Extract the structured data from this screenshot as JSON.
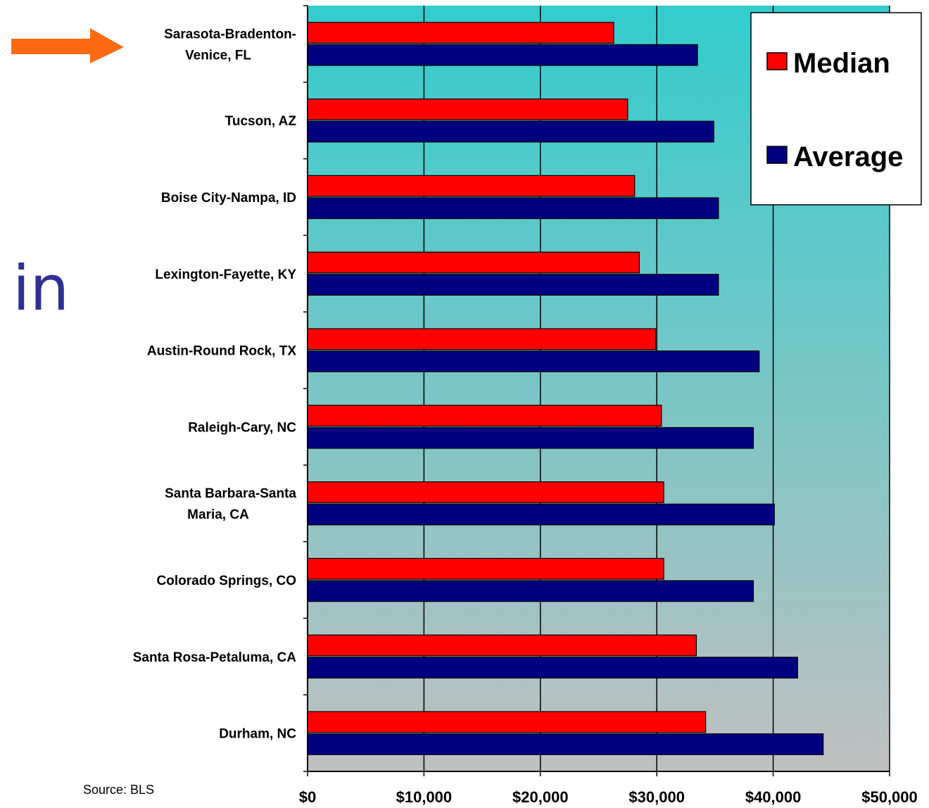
{
  "side_text": "in",
  "source": "Source: BLS",
  "colors": {
    "median": "#ff0000",
    "average": "#000080",
    "plot_top": "#33cccc",
    "plot_bottom": "#c0c0c0",
    "arrow": "#ff6a13",
    "side_text": "#2e3192"
  },
  "arrow_icon": "right-arrow-icon",
  "chart_data": {
    "type": "bar",
    "orientation": "horizontal",
    "categories": [
      "Sarasota-Bradenton-Venice, FL",
      "Tucson, AZ",
      "Boise City-Nampa, ID",
      "Lexington-Fayette, KY",
      "Austin-Round Rock, TX",
      "Raleigh-Cary, NC",
      "Santa Barbara-Santa Maria, CA",
      "Colorado Springs, CO",
      "Santa Rosa-Petaluma, CA",
      "Durham, NC"
    ],
    "category_lines": [
      [
        "Sarasota-Bradenton-",
        "Venice, FL"
      ],
      [
        "Tucson, AZ"
      ],
      [
        "Boise City-Nampa, ID"
      ],
      [
        "Lexington-Fayette, KY"
      ],
      [
        "Austin-Round Rock, TX"
      ],
      [
        "Raleigh-Cary, NC"
      ],
      [
        "Santa Barbara-Santa",
        "Maria, CA"
      ],
      [
        "Colorado Springs, CO"
      ],
      [
        "Santa Rosa-Petaluma, CA"
      ],
      [
        "Durham, NC"
      ]
    ],
    "series": [
      {
        "name": "Median",
        "values": [
          26300,
          27500,
          28100,
          28500,
          29900,
          30400,
          30600,
          30600,
          33400,
          34200
        ]
      },
      {
        "name": "Average",
        "values": [
          33500,
          34900,
          35300,
          35300,
          38800,
          38300,
          40100,
          38300,
          42100,
          44300
        ]
      }
    ],
    "xlim": [
      0,
      50000
    ],
    "x_ticks": [
      0,
      10000,
      20000,
      30000,
      40000,
      50000
    ],
    "x_tick_labels": [
      "$0",
      "$10,000",
      "$20,000",
      "$30,000",
      "$40,000",
      "$50,000"
    ],
    "grid": true,
    "legend_position": "top-right"
  }
}
